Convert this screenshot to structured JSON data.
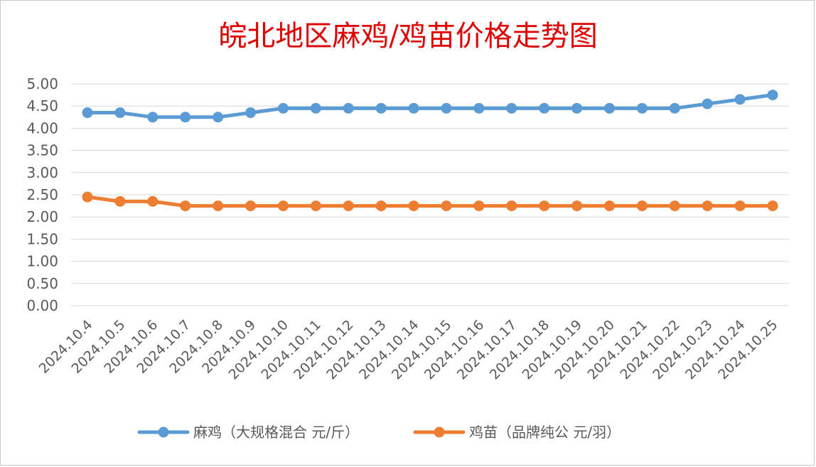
{
  "chart_data": {
    "type": "line",
    "title": "皖北地区麻鸡/鸡苗价格走势图",
    "categories": [
      "2024.10.4",
      "2024.10.5",
      "2024.10.6",
      "2024.10.7",
      "2024.10.8",
      "2024.10.9",
      "2024.10.10",
      "2024.10.11",
      "2024.10.12",
      "2024.10.13",
      "2024.10.14",
      "2024.10.15",
      "2024.10.16",
      "2024.10.17",
      "2024.10.18",
      "2024.10.19",
      "2024.10.20",
      "2024.10.21",
      "2024.10.22",
      "2024.10.23",
      "2024.10.24",
      "2024.10.25"
    ],
    "series": [
      {
        "name": "麻鸡（大规格混合 元/斤）",
        "color": "#5b9bd5",
        "values": [
          4.35,
          4.35,
          4.25,
          4.25,
          4.25,
          4.35,
          4.45,
          4.45,
          4.45,
          4.45,
          4.45,
          4.45,
          4.45,
          4.45,
          4.45,
          4.45,
          4.45,
          4.45,
          4.45,
          4.55,
          4.65,
          4.75
        ]
      },
      {
        "name": "鸡苗（品牌纯公 元/羽）",
        "color": "#ed7d31",
        "values": [
          2.45,
          2.35,
          2.35,
          2.25,
          2.25,
          2.25,
          2.25,
          2.25,
          2.25,
          2.25,
          2.25,
          2.25,
          2.25,
          2.25,
          2.25,
          2.25,
          2.25,
          2.25,
          2.25,
          2.25,
          2.25,
          2.25
        ]
      }
    ],
    "ylim": [
      0,
      5
    ],
    "yticks": [
      "0.00",
      "0.50",
      "1.00",
      "1.50",
      "2.00",
      "2.50",
      "3.00",
      "3.50",
      "4.00",
      "4.50",
      "5.00"
    ],
    "grid": true,
    "legend": "bottom",
    "xlabel": "",
    "ylabel": ""
  }
}
